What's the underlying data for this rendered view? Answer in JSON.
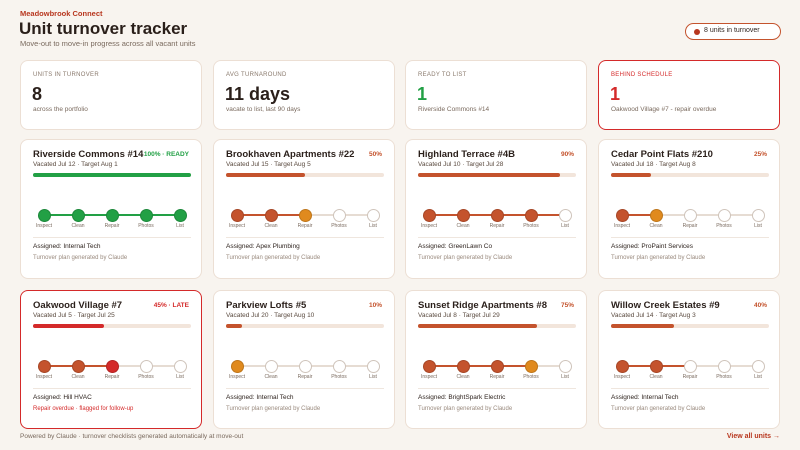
{
  "header": {
    "brand": "Meadowbrook Connect",
    "title": "Unit turnover tracker",
    "subtitle": "Move-out to move-in progress across all vacant units",
    "badge": "8 units in turnover"
  },
  "kpis": [
    {
      "label": "UNITS IN TURNOVER",
      "value": "8",
      "caption": "across the portfolio",
      "tone": "default"
    },
    {
      "label": "AVG TURNAROUND",
      "value": "11 days",
      "caption": "vacate to list, last 90 days",
      "tone": "default"
    },
    {
      "label": "READY TO LIST",
      "value": "1",
      "caption": "Riverside Commons #14",
      "tone": "green"
    },
    {
      "label": "BEHIND SCHEDULE",
      "value": "1",
      "caption": "Oakwood Village #7 - repair overdue",
      "tone": "red"
    }
  ],
  "steps": [
    "Inspect",
    "Clean",
    "Repair",
    "Photos",
    "List"
  ],
  "units": [
    {
      "name": "Riverside Commons #14",
      "progress": 100,
      "progress_label": "100% · READY",
      "dates": "Vacated Jul 12 · Target Aug 1",
      "status": "ready",
      "step_status": [
        "ready",
        "ready",
        "ready",
        "ready",
        "ready"
      ],
      "assigned": "Assigned: Internal Tech",
      "note": "Turnover plan generated by Claude"
    },
    {
      "name": "Brookhaven Apartments #22",
      "progress": 50,
      "progress_label": "50%",
      "dates": "Vacated Jul 15 · Target Aug 5",
      "status": "active",
      "step_status": [
        "done",
        "done",
        "current",
        "todo",
        "todo"
      ],
      "assigned": "Assigned: Apex Plumbing",
      "note": "Turnover plan generated by Claude"
    },
    {
      "name": "Highland Terrace #4B",
      "progress": 90,
      "progress_label": "90%",
      "dates": "Vacated Jul 10 · Target Jul 28",
      "status": "active",
      "step_status": [
        "done",
        "done",
        "done",
        "done",
        "todo"
      ],
      "assigned": "Assigned: GreenLawn Co",
      "note": "Turnover plan generated by Claude"
    },
    {
      "name": "Cedar Point Flats #210",
      "progress": 25,
      "progress_label": "25%",
      "dates": "Vacated Jul 18 · Target Aug 8",
      "status": "active",
      "step_status": [
        "done",
        "current",
        "todo",
        "todo",
        "todo"
      ],
      "assigned": "Assigned: ProPaint Services",
      "note": "Turnover plan generated by Claude"
    },
    {
      "name": "Oakwood Village #7",
      "progress": 45,
      "progress_label": "45% · LATE",
      "dates": "Vacated Jul 5 · Target Jul 25",
      "status": "late",
      "step_status": [
        "done",
        "done",
        "overdue",
        "todo",
        "todo"
      ],
      "assigned": "Assigned: Hill HVAC",
      "note": "Repair overdue · flagged for follow-up"
    },
    {
      "name": "Parkview Lofts #5",
      "progress": 10,
      "progress_label": "10%",
      "dates": "Vacated Jul 20 · Target Aug 10",
      "status": "active",
      "step_status": [
        "current",
        "todo",
        "todo",
        "todo",
        "todo"
      ],
      "assigned": "Assigned: Internal Tech",
      "note": "Turnover plan generated by Claude"
    },
    {
      "name": "Sunset Ridge Apartments #8",
      "progress": 75,
      "progress_label": "75%",
      "dates": "Vacated Jul 8 · Target Jul 29",
      "status": "active",
      "step_status": [
        "done",
        "done",
        "done",
        "current",
        "todo"
      ],
      "assigned": "Assigned: BrightSpark Electric",
      "note": "Turnover plan generated by Claude"
    },
    {
      "name": "Willow Creek Estates #9",
      "progress": 40,
      "progress_label": "40%",
      "dates": "Vacated Jul 14 · Target Aug 3",
      "status": "active",
      "step_status": [
        "done",
        "done",
        "todo",
        "todo",
        "todo"
      ],
      "assigned": "Assigned: Internal Tech",
      "note": "Turnover plan generated by Claude"
    }
  ],
  "footer": {
    "text": "Powered by Claude · turnover checklists generated automatically at move-out",
    "link": "View all units →"
  }
}
